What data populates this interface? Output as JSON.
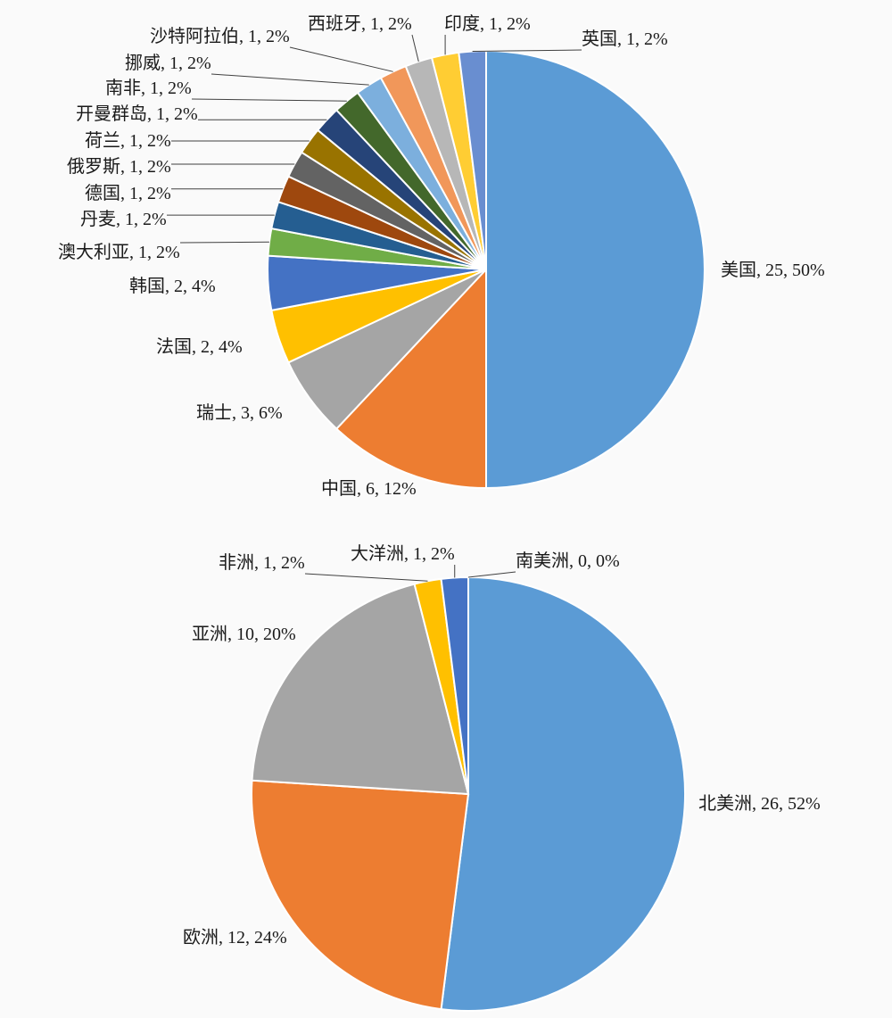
{
  "chart_data": [
    {
      "type": "pie",
      "start": "top",
      "direction": "clockwise",
      "legend": "none",
      "label_format": "name, value, percent",
      "slices": [
        {
          "label": "美国",
          "value": 25,
          "pct": "50%",
          "text": "美国, 25, 50%",
          "color": "#5B9BD5",
          "leader": false
        },
        {
          "label": "中国",
          "value": 6,
          "pct": "12%",
          "text": "中国, 6, 12%",
          "color": "#ED7D31",
          "leader": false
        },
        {
          "label": "瑞士",
          "value": 3,
          "pct": "6%",
          "text": "瑞士, 3, 6%",
          "color": "#A5A5A5",
          "leader": false
        },
        {
          "label": "法国",
          "value": 2,
          "pct": "4%",
          "text": "法国, 2, 4%",
          "color": "#FFC000",
          "leader": false
        },
        {
          "label": "韩国",
          "value": 2,
          "pct": "4%",
          "text": "韩国, 2, 4%",
          "color": "#4472C4",
          "leader": false
        },
        {
          "label": "澳大利亚",
          "value": 1,
          "pct": "2%",
          "text": "澳大利亚, 1, 2%",
          "color": "#70AD47",
          "leader": true
        },
        {
          "label": "丹麦",
          "value": 1,
          "pct": "2%",
          "text": "丹麦, 1, 2%",
          "color": "#255E91",
          "leader": true
        },
        {
          "label": "德国",
          "value": 1,
          "pct": "2%",
          "text": "德国, 1, 2%",
          "color": "#9E480E",
          "leader": true
        },
        {
          "label": "俄罗斯",
          "value": 1,
          "pct": "2%",
          "text": "俄罗斯, 1, 2%",
          "color": "#636363",
          "leader": true
        },
        {
          "label": "荷兰",
          "value": 1,
          "pct": "2%",
          "text": "荷兰, 1, 2%",
          "color": "#997300",
          "leader": true
        },
        {
          "label": "开曼群岛",
          "value": 1,
          "pct": "2%",
          "text": "开曼群岛, 1, 2%",
          "color": "#264478",
          "leader": true
        },
        {
          "label": "南非",
          "value": 1,
          "pct": "2%",
          "text": "南非, 1, 2%",
          "color": "#43682B",
          "leader": true
        },
        {
          "label": "挪威",
          "value": 1,
          "pct": "2%",
          "text": "挪威, 1, 2%",
          "color": "#7CAFDD",
          "leader": true
        },
        {
          "label": "沙特阿拉伯",
          "value": 1,
          "pct": "2%",
          "text": "沙特阿拉伯, 1, 2%",
          "color": "#F1975A",
          "leader": true
        },
        {
          "label": "西班牙",
          "value": 1,
          "pct": "2%",
          "text": "西班牙, 1, 2%",
          "color": "#B7B7B7",
          "leader": true
        },
        {
          "label": "印度",
          "value": 1,
          "pct": "2%",
          "text": "印度, 1, 2%",
          "color": "#FFCD33",
          "leader": true
        },
        {
          "label": "英国",
          "value": 1,
          "pct": "2%",
          "text": "英国, 1, 2%",
          "color": "#698ED0",
          "leader": true
        }
      ]
    },
    {
      "type": "pie",
      "start": "top",
      "direction": "clockwise",
      "legend": "none",
      "label_format": "name, value, percent",
      "slices": [
        {
          "label": "北美洲",
          "value": 26,
          "pct": "52%",
          "text": "北美洲, 26, 52%",
          "color": "#5B9BD5",
          "leader": false
        },
        {
          "label": "欧洲",
          "value": 12,
          "pct": "24%",
          "text": "欧洲, 12, 24%",
          "color": "#ED7D31",
          "leader": false
        },
        {
          "label": "亚洲",
          "value": 10,
          "pct": "20%",
          "text": "亚洲, 10, 20%",
          "color": "#A5A5A5",
          "leader": false
        },
        {
          "label": "非洲",
          "value": 1,
          "pct": "2%",
          "text": "非洲, 1, 2%",
          "color": "#FFC000",
          "leader": true
        },
        {
          "label": "大洋洲",
          "value": 1,
          "pct": "2%",
          "text": "大洋洲, 1, 2%",
          "color": "#4472C4",
          "leader": true
        },
        {
          "label": "南美洲",
          "value": 0,
          "pct": "0%",
          "text": "南美洲, 0, 0%",
          "color": "#70AD47",
          "leader": true
        }
      ]
    }
  ]
}
